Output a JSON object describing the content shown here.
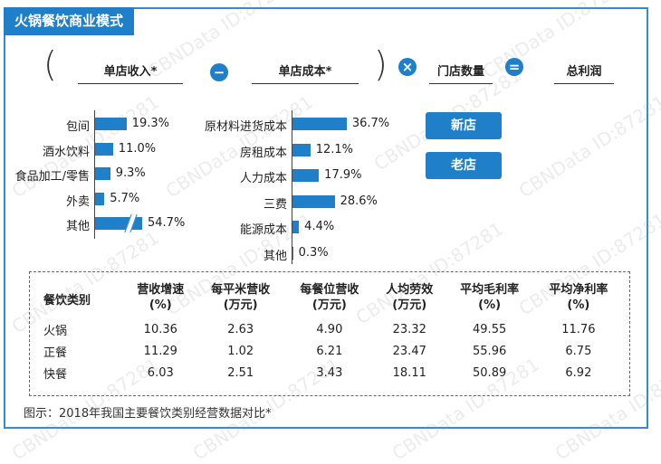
{
  "title": "火锅餐饮商业模式",
  "formula": {
    "term1": "单店收入*",
    "op1": "−",
    "term2": "单店成本*",
    "op2": "×",
    "term3": "门店数量",
    "op3": "=",
    "result": "总利润"
  },
  "buttons": {
    "new_store": "新店",
    "old_store": "老店"
  },
  "chart_data": [
    {
      "type": "bar",
      "categories": [
        "包间",
        "酒水饮料",
        "食品加工/零售",
        "外卖",
        "其他"
      ],
      "values": [
        19.3,
        11.0,
        9.3,
        5.7,
        54.7
      ],
      "value_labels": [
        "19.3%",
        "11.0%",
        "9.3%",
        "5.7%",
        "54.7%"
      ],
      "orientation": "horizontal",
      "broken_axis_category": "其他"
    },
    {
      "type": "bar",
      "categories": [
        "原材料进货成本",
        "房租成本",
        "人力成本",
        "三费",
        "能源成本",
        "其他"
      ],
      "values": [
        36.7,
        12.1,
        17.9,
        28.6,
        4.4,
        0.3
      ],
      "value_labels": [
        "36.7%",
        "12.1%",
        "17.9%",
        "28.6%",
        "4.4%",
        "0.3%"
      ],
      "orientation": "horizontal"
    },
    {
      "type": "table",
      "headers": [
        "餐饮类别",
        "营收增速\n(%)",
        "每平米营收\n(万元)",
        "每餐位营收\n(万元)",
        "人均劳效\n(万元)",
        "平均毛利率\n(%)",
        "平均净利率\n(%)"
      ],
      "rows": [
        [
          "火锅",
          "10.36",
          "2.63",
          "4.90",
          "23.32",
          "49.55",
          "11.76"
        ],
        [
          "正餐",
          "11.29",
          "1.02",
          "6.21",
          "23.47",
          "55.96",
          "6.75"
        ],
        [
          "快餐",
          "6.03",
          "2.51",
          "3.43",
          "18.11",
          "50.89",
          "6.92"
        ]
      ]
    }
  ],
  "caption": "图示：2018年我国主要餐饮类别经营数据对比*",
  "watermark": "CBNData ID:87281",
  "colors": {
    "accent": "#1f7fc9"
  }
}
